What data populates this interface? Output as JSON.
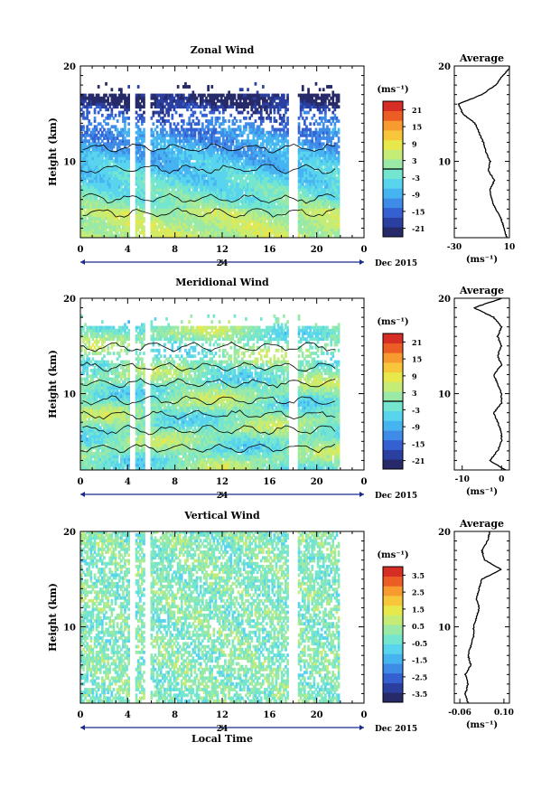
{
  "chart_data": [
    {
      "type": "heatmap",
      "title": "Zonal Wind",
      "ylabel": "Height (km)",
      "unit_label": "(ms⁻¹)",
      "x_ticks": [
        "0",
        "4",
        "8",
        "12",
        "16",
        "20",
        "0"
      ],
      "x_range_hours": [
        0,
        24
      ],
      "y_ticks": [
        "20",
        "10"
      ],
      "y_range_km": [
        2,
        20
      ],
      "colorbar_ticks": [
        "21",
        "15",
        "9",
        "3",
        "-3",
        "-9",
        "-15",
        "-21"
      ],
      "colorbar_range": [
        -24,
        24
      ],
      "zero_line": true,
      "data_gaps_hours": [
        [
          4.2,
          4.6
        ],
        [
          5.5,
          5.9
        ],
        [
          17.7,
          18.3
        ]
      ],
      "date_axis": {
        "tick": "24",
        "label": "Dec 2015"
      },
      "profile": {
        "title": "Average",
        "x_ticks": [
          "-30",
          "10"
        ],
        "x_range": [
          -30,
          10
        ],
        "xlabel": "(ms⁻¹)",
        "y_ticks": [
          "20",
          "10"
        ],
        "height_km": [
          2.0,
          3,
          4,
          5,
          6,
          7,
          8,
          9,
          10,
          11,
          12,
          13,
          14,
          15,
          16,
          17,
          18,
          19,
          20
        ],
        "values": [
          8,
          6,
          4,
          0,
          -3,
          -4,
          -1,
          -5,
          -4,
          -7,
          -9,
          -12,
          -15,
          -24,
          -27,
          -10,
          0,
          5,
          12
        ]
      }
    },
    {
      "type": "heatmap",
      "title": "Meridional Wind",
      "ylabel": "Height (km)",
      "unit_label": "(ms⁻¹)",
      "x_ticks": [
        "0",
        "4",
        "8",
        "12",
        "16",
        "20",
        "0"
      ],
      "x_range_hours": [
        0,
        24
      ],
      "y_ticks": [
        "20",
        "10"
      ],
      "y_range_km": [
        2,
        20
      ],
      "colorbar_ticks": [
        "21",
        "15",
        "9",
        "3",
        "-3",
        "-9",
        "-15",
        "-21"
      ],
      "colorbar_range": [
        -24,
        24
      ],
      "zero_line": true,
      "data_gaps_hours": [
        [
          4.2,
          4.6
        ],
        [
          5.5,
          5.9
        ],
        [
          17.7,
          18.3
        ]
      ],
      "date_axis": {
        "tick": "24",
        "label": "Dec 2015"
      },
      "profile": {
        "title": "Average",
        "x_ticks": [
          "-10",
          "0"
        ],
        "x_range": [
          -12,
          2
        ],
        "xlabel": "(ms⁻¹)",
        "y_ticks": [
          "20",
          "10"
        ],
        "height_km": [
          2.0,
          3,
          4,
          5,
          6,
          7,
          8,
          9,
          10,
          11,
          12,
          13,
          14,
          15,
          16,
          17,
          18,
          19,
          20
        ],
        "values": [
          1,
          -3,
          -1,
          0,
          0,
          -1,
          -2,
          0,
          0,
          -1,
          -2,
          0,
          -1,
          0,
          -1,
          0,
          -2,
          -7,
          0
        ]
      }
    },
    {
      "type": "heatmap",
      "title": "Vertical Wind",
      "ylabel": "Height (km)",
      "xlabel": "Local Time",
      "unit_label": "(ms⁻¹)",
      "x_ticks": [
        "0",
        "4",
        "8",
        "12",
        "16",
        "20",
        "0"
      ],
      "x_range_hours": [
        0,
        24
      ],
      "y_ticks": [
        "20",
        "10"
      ],
      "y_range_km": [
        2,
        20
      ],
      "colorbar_ticks": [
        "3.5",
        "2.5",
        "1.5",
        "0.5",
        "-0.5",
        "-1.5",
        "-2.5",
        "-3.5"
      ],
      "colorbar_range": [
        -4,
        4
      ],
      "zero_line": false,
      "data_gaps_hours": [
        [
          4.2,
          4.6
        ],
        [
          5.5,
          5.9
        ],
        [
          17.7,
          18.3
        ]
      ],
      "date_axis": {
        "tick": "24",
        "label": "Dec 2015"
      },
      "profile": {
        "title": "Average",
        "x_ticks": [
          "-0.06",
          "0.10"
        ],
        "x_range": [
          -0.08,
          0.12
        ],
        "xlabel": "(ms⁻¹)",
        "y_ticks": [
          "20",
          "10"
        ],
        "height_km": [
          2.0,
          3,
          4,
          5,
          6,
          7,
          8,
          9,
          10,
          11,
          12,
          13,
          14,
          15,
          16,
          17,
          18,
          19,
          20
        ],
        "values": [
          -0.03,
          -0.04,
          -0.03,
          -0.04,
          -0.02,
          -0.03,
          -0.02,
          -0.01,
          -0.01,
          0.0,
          0.01,
          0.0,
          0.01,
          0.02,
          0.09,
          0.03,
          0.02,
          0.04,
          0.05
        ]
      }
    }
  ],
  "colormap": [
    "#262a68",
    "#2b3fa0",
    "#3460d1",
    "#3f8ce8",
    "#47b4f2",
    "#59d4ee",
    "#74e6cf",
    "#9ae9a6",
    "#c4ec77",
    "#e6e84c",
    "#f7c63b",
    "#f79a2f",
    "#ec5d26",
    "#d62d24"
  ]
}
